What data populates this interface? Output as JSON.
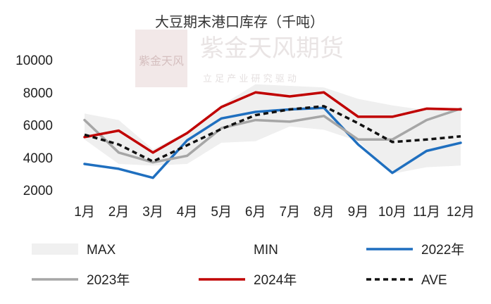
{
  "chart_data": {
    "type": "line",
    "title": "大豆期末港口库存（千吨）",
    "categories": [
      "1月",
      "2月",
      "3月",
      "4月",
      "5月",
      "6月",
      "7月",
      "8月",
      "9月",
      "10月",
      "11月",
      "12月"
    ],
    "y_ticks": [
      "2000",
      "4000",
      "6000",
      "8000",
      "10000"
    ],
    "ylim": [
      2000,
      10000
    ],
    "grid": false,
    "legend_position": "bottom",
    "range_band": {
      "max": [
        6700,
        6300,
        4500,
        5600,
        7200,
        8500,
        8400,
        8300,
        7600,
        7200,
        6900,
        7000
      ],
      "min": [
        5100,
        3600,
        3500,
        3600,
        4900,
        5000,
        5900,
        5700,
        5000,
        3000,
        3400,
        3500
      ]
    },
    "series": [
      {
        "name": "2022年",
        "color": "#1f6fbf",
        "dash": "",
        "values": [
          3600,
          3300,
          2750,
          5050,
          6400,
          6800,
          6950,
          7050,
          4800,
          3050,
          4400,
          4900
        ]
      },
      {
        "name": "2023年",
        "color": "#a6a6a6",
        "dash": "",
        "values": [
          6300,
          4300,
          3700,
          4100,
          5800,
          6300,
          6200,
          6550,
          5100,
          5100,
          6300,
          7000
        ]
      },
      {
        "name": "2024年",
        "color": "#c00000",
        "dash": "",
        "values": [
          5250,
          5650,
          4300,
          5500,
          7100,
          8000,
          7750,
          8000,
          6500,
          6500,
          7000,
          6950
        ]
      },
      {
        "name": "AVE",
        "color": "#111111",
        "dash": "7,5",
        "values": [
          5400,
          4800,
          3750,
          4750,
          5750,
          6600,
          6950,
          7150,
          6100,
          4950,
          5100,
          5300
        ]
      }
    ],
    "legend": [
      {
        "label": "MAX",
        "kind": "band",
        "color": "#f0f0f0"
      },
      {
        "label": "MIN",
        "kind": "none",
        "color": "#ffffff"
      },
      {
        "label": "2022年",
        "kind": "line",
        "color": "#1f6fbf"
      },
      {
        "label": "2023年",
        "kind": "line",
        "color": "#a6a6a6"
      },
      {
        "label": "2024年",
        "kind": "line",
        "color": "#c00000"
      },
      {
        "label": "AVE",
        "kind": "dash",
        "color": "#111111"
      }
    ]
  },
  "watermark": {
    "brand": "紫金天风期货",
    "slogan": "立 足 产 业   研 究 驱 动",
    "logo_text": "紫金天风",
    "color": "#d9c3c3"
  }
}
